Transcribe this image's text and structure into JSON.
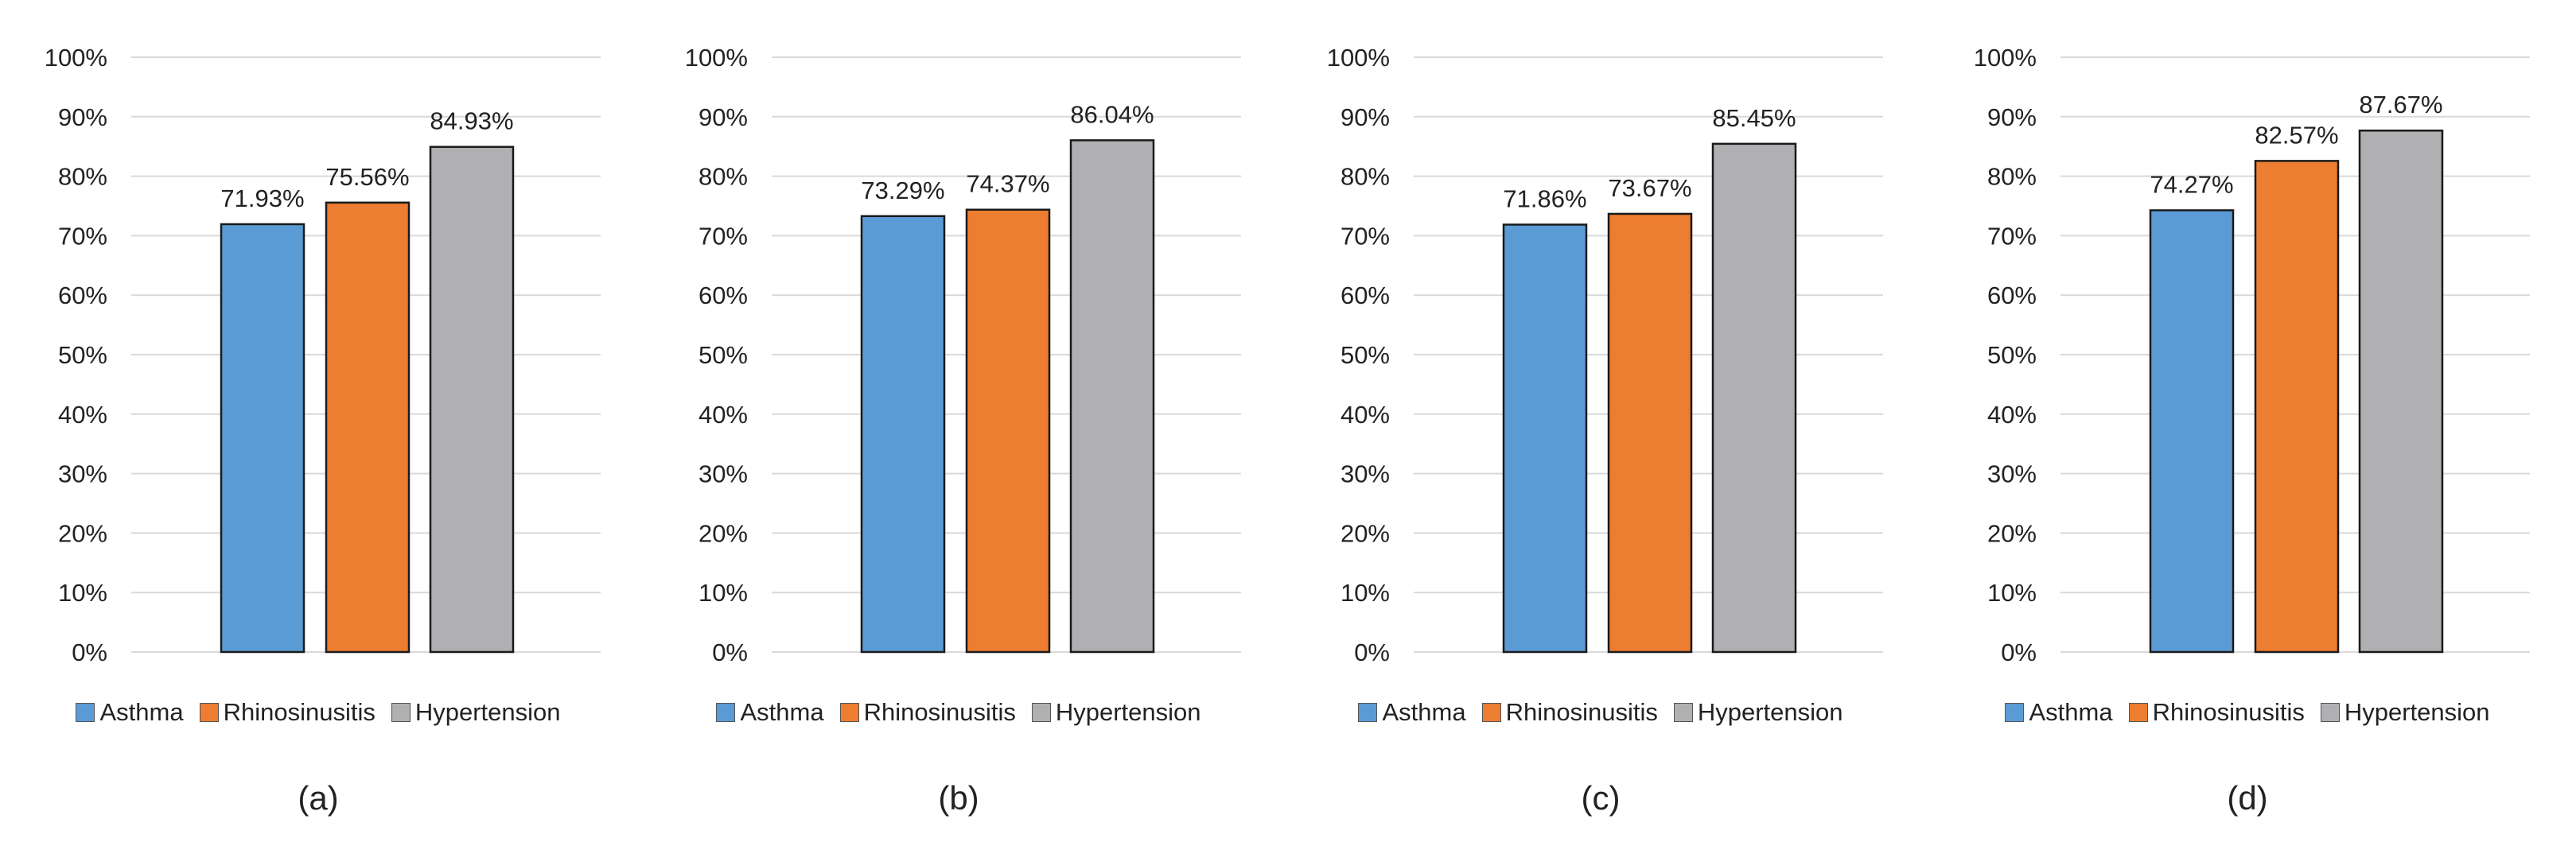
{
  "colors": {
    "Asthma": "#5b9bd5",
    "Rhinosinusitis": "#ed7d31",
    "Hypertension": "#b0b0b2",
    "grid": "#d9d9d9",
    "bar_stroke": "#1a1a1a"
  },
  "chart_data": [
    {
      "type": "bar",
      "caption": "(a)",
      "categories": [
        "Asthma",
        "Rhinosinusitis",
        "Hypertension"
      ],
      "values": [
        71.93,
        75.56,
        84.93
      ],
      "data_labels": [
        "71.93%",
        "75.56%",
        "84.93%"
      ],
      "legend": [
        "Asthma",
        "Rhinosinusitis",
        "Hypertension"
      ],
      "yticks": [
        "0%",
        "10%",
        "20%",
        "30%",
        "40%",
        "50%",
        "60%",
        "70%",
        "80%",
        "90%",
        "100%"
      ],
      "ylim": [
        0,
        100
      ],
      "grid": true,
      "legend_position": "bottom"
    },
    {
      "type": "bar",
      "caption": "(b)",
      "categories": [
        "Asthma",
        "Rhinosinusitis",
        "Hypertension"
      ],
      "values": [
        73.29,
        74.37,
        86.04
      ],
      "data_labels": [
        "73.29%",
        "74.37%",
        "86.04%"
      ],
      "legend": [
        "Asthma",
        "Rhinosinusitis",
        "Hypertension"
      ],
      "yticks": [
        "0%",
        "10%",
        "20%",
        "30%",
        "40%",
        "50%",
        "60%",
        "70%",
        "80%",
        "90%",
        "100%"
      ],
      "ylim": [
        0,
        100
      ],
      "grid": true,
      "legend_position": "bottom"
    },
    {
      "type": "bar",
      "caption": "(c)",
      "categories": [
        "Asthma",
        "Rhinosinusitis",
        "Hypertension"
      ],
      "values": [
        71.86,
        73.67,
        85.45
      ],
      "data_labels": [
        "71.86%",
        "73.67%",
        "85.45%"
      ],
      "legend": [
        "Asthma",
        "Rhinosinusitis",
        "Hypertension"
      ],
      "yticks": [
        "0%",
        "10%",
        "20%",
        "30%",
        "40%",
        "50%",
        "60%",
        "70%",
        "80%",
        "90%",
        "100%"
      ],
      "ylim": [
        0,
        100
      ],
      "grid": true,
      "legend_position": "bottom"
    },
    {
      "type": "bar",
      "caption": "(d)",
      "categories": [
        "Asthma",
        "Rhinosinusitis",
        "Hypertension"
      ],
      "values": [
        74.27,
        82.57,
        87.67
      ],
      "data_labels": [
        "74.27%",
        "82.57%",
        "87.67%"
      ],
      "legend": [
        "Asthma",
        "Rhinosinusitis",
        "Hypertension"
      ],
      "yticks": [
        "0%",
        "10%",
        "20%",
        "30%",
        "40%",
        "50%",
        "60%",
        "70%",
        "80%",
        "90%",
        "100%"
      ],
      "ylim": [
        0,
        100
      ],
      "grid": true,
      "legend_position": "bottom"
    }
  ]
}
